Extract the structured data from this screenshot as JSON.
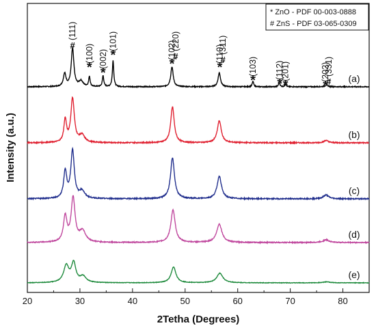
{
  "chart_data": {
    "type": "line",
    "title": "",
    "xlabel": "2Tetha (Degrees)",
    "ylabel": "Intensity (a.u.)",
    "xlim": [
      20,
      85
    ],
    "xticks": [
      "20",
      "30",
      "40",
      "50",
      "60",
      "70",
      "80"
    ],
    "yticks": "none",
    "grid": false,
    "legend": {
      "placement": "top-right",
      "entries": [
        "* ZnO - PDF 00-003-0888",
        "# ZnS - PDF 03-065-0309"
      ]
    },
    "peak_labels": [
      {
        "text": "#",
        "x": 28.6
      },
      {
        "text": "(111)",
        "x": 28.6
      },
      {
        "text": "*",
        "x": 31.8
      },
      {
        "text": "(100)",
        "x": 31.8
      },
      {
        "text": "*",
        "x": 34.4
      },
      {
        "text": "(002)",
        "x": 34.4
      },
      {
        "text": "*",
        "x": 36.3
      },
      {
        "text": "(101)",
        "x": 36.3
      },
      {
        "text": "*",
        "x": 47.5
      },
      {
        "text": "(102)",
        "x": 47.5
      },
      {
        "text": "#",
        "x": 48.2
      },
      {
        "text": "(220)",
        "x": 48.2
      },
      {
        "text": "*",
        "x": 56.6
      },
      {
        "text": "(110)",
        "x": 56.6
      },
      {
        "text": "#",
        "x": 57.2
      },
      {
        "text": "(311)",
        "x": 57.2
      },
      {
        "text": "*",
        "x": 62.9
      },
      {
        "text": "(103)",
        "x": 62.9
      },
      {
        "text": "*",
        "x": 68.0
      },
      {
        "text": "(112)",
        "x": 68.0
      },
      {
        "text": "*",
        "x": 69.1
      },
      {
        "text": "(201)",
        "x": 69.1
      },
      {
        "text": "*",
        "x": 76.7
      },
      {
        "text": "(202)",
        "x": 76.7
      },
      {
        "text": "#",
        "x": 77.3
      },
      {
        "text": "(331)",
        "x": 77.3
      }
    ],
    "series": [
      {
        "name": "(a)",
        "color": "#000000",
        "peaks": [
          {
            "x": 27.1,
            "height": 0.3,
            "width": 0.3
          },
          {
            "x": 28.6,
            "height": 0.9,
            "width": 0.3
          },
          {
            "x": 30.2,
            "height": 0.13,
            "width": 0.45
          },
          {
            "x": 31.8,
            "height": 0.24,
            "width": 0.16
          },
          {
            "x": 34.4,
            "height": 0.26,
            "width": 0.16
          },
          {
            "x": 36.3,
            "height": 0.62,
            "width": 0.16
          },
          {
            "x": 47.5,
            "height": 0.47,
            "width": 0.28
          },
          {
            "x": 56.5,
            "height": 0.33,
            "width": 0.28
          },
          {
            "x": 62.9,
            "height": 0.13,
            "width": 0.16
          },
          {
            "x": 67.9,
            "height": 0.1,
            "width": 0.16
          },
          {
            "x": 69.1,
            "height": 0.06,
            "width": 0.16
          },
          {
            "x": 76.9,
            "height": 0.04,
            "width": 0.35
          }
        ]
      },
      {
        "name": "(b)",
        "color": "#e02030",
        "peaks": [
          {
            "x": 27.2,
            "height": 0.47,
            "width": 0.3
          },
          {
            "x": 28.6,
            "height": 0.92,
            "width": 0.4
          },
          {
            "x": 30.4,
            "height": 0.15,
            "width": 0.6
          },
          {
            "x": 47.6,
            "height": 0.75,
            "width": 0.4
          },
          {
            "x": 56.5,
            "height": 0.46,
            "width": 0.45
          },
          {
            "x": 76.8,
            "height": 0.05,
            "width": 0.5
          }
        ]
      },
      {
        "name": "(c)",
        "color": "#1f2d8c",
        "peaks": [
          {
            "x": 27.2,
            "height": 0.56,
            "width": 0.35
          },
          {
            "x": 28.6,
            "height": 1.0,
            "width": 0.4
          },
          {
            "x": 30.4,
            "height": 0.15,
            "width": 0.6
          },
          {
            "x": 47.6,
            "height": 0.85,
            "width": 0.45
          },
          {
            "x": 56.5,
            "height": 0.47,
            "width": 0.5
          },
          {
            "x": 76.8,
            "height": 0.08,
            "width": 0.6
          }
        ]
      },
      {
        "name": "(d)",
        "color": "#c0489e",
        "peaks": [
          {
            "x": 27.2,
            "height": 0.58,
            "width": 0.4
          },
          {
            "x": 28.7,
            "height": 1.0,
            "width": 0.45
          },
          {
            "x": 30.5,
            "height": 0.25,
            "width": 0.7
          },
          {
            "x": 47.7,
            "height": 0.74,
            "width": 0.5
          },
          {
            "x": 56.5,
            "height": 0.42,
            "width": 0.6
          },
          {
            "x": 76.8,
            "height": 0.06,
            "width": 0.7
          }
        ]
      },
      {
        "name": "(e)",
        "color": "#1e8a3c",
        "peaks": [
          {
            "x": 27.4,
            "height": 0.7,
            "width": 0.6
          },
          {
            "x": 28.8,
            "height": 0.8,
            "width": 0.5
          },
          {
            "x": 30.6,
            "height": 0.25,
            "width": 0.7
          },
          {
            "x": 47.8,
            "height": 0.66,
            "width": 0.55
          },
          {
            "x": 56.6,
            "height": 0.4,
            "width": 0.7
          },
          {
            "x": 76.9,
            "height": 0.04,
            "width": 0.8
          }
        ]
      }
    ]
  }
}
